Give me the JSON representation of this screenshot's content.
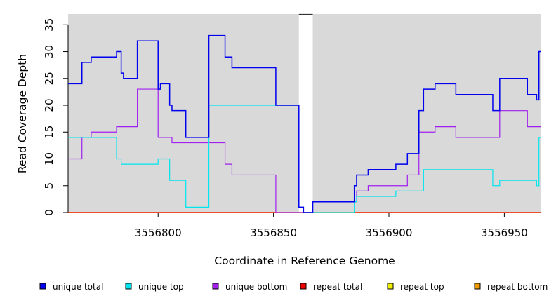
{
  "chart_data": {
    "type": "line",
    "title": "",
    "xlabel": "Coordinate in Reference Genome",
    "ylabel": "Read Coverage Depth",
    "xlim": [
      3556761,
      3556966
    ],
    "ylim": [
      0,
      37
    ],
    "x_ticks": [
      3556800,
      3556850,
      3556900,
      3556950
    ],
    "x_tick_labels": [
      "3556800",
      "3556850",
      "3556900",
      "3556950"
    ],
    "y_ticks": [
      0,
      5,
      10,
      15,
      20,
      25,
      30,
      35
    ],
    "y_tick_labels": [
      "0",
      "5",
      "10",
      "15",
      "20",
      "25",
      "30",
      "35"
    ],
    "grid": false,
    "step": true,
    "legend_position": "bottom",
    "gap_region": [
      3556861,
      3556867
    ],
    "colors": {
      "unique total": "#0000ee",
      "unique top": "#00e5ee",
      "unique bottom": "#a020f0",
      "repeat total": "#ee0000",
      "repeat top": "#eeee00",
      "repeat bottom": "#ee9a00",
      "plot_background": "#d9d9d9"
    },
    "series": [
      {
        "name": "unique total",
        "points": [
          [
            3556761,
            24
          ],
          [
            3556767,
            28
          ],
          [
            3556771,
            29
          ],
          [
            3556782,
            30
          ],
          [
            3556784,
            26
          ],
          [
            3556785,
            25
          ],
          [
            3556791,
            32
          ],
          [
            3556800,
            23
          ],
          [
            3556801,
            24
          ],
          [
            3556805,
            20
          ],
          [
            3556806,
            19
          ],
          [
            3556812,
            14
          ],
          [
            3556822,
            33
          ],
          [
            3556829,
            29
          ],
          [
            3556832,
            27
          ],
          [
            3556851,
            20
          ],
          [
            3556861,
            1
          ],
          [
            3556863,
            0
          ],
          [
            3556867,
            2
          ],
          [
            3556885,
            5
          ],
          [
            3556886,
            7
          ],
          [
            3556891,
            8
          ],
          [
            3556903,
            9
          ],
          [
            3556908,
            11
          ],
          [
            3556913,
            19
          ],
          [
            3556915,
            23
          ],
          [
            3556920,
            24
          ],
          [
            3556929,
            22
          ],
          [
            3556945,
            19
          ],
          [
            3556948,
            25
          ],
          [
            3556960,
            22
          ],
          [
            3556964,
            21
          ],
          [
            3556965,
            30
          ],
          [
            3556966,
            30
          ]
        ]
      },
      {
        "name": "unique top",
        "points": [
          [
            3556761,
            14
          ],
          [
            3556782,
            10
          ],
          [
            3556784,
            9
          ],
          [
            3556800,
            10
          ],
          [
            3556805,
            6
          ],
          [
            3556812,
            1
          ],
          [
            3556822,
            20
          ],
          [
            3556861,
            1
          ],
          [
            3556863,
            0
          ],
          [
            3556867,
            0
          ],
          [
            3556885,
            2
          ],
          [
            3556886,
            3
          ],
          [
            3556903,
            4
          ],
          [
            3556915,
            8
          ],
          [
            3556945,
            5
          ],
          [
            3556948,
            6
          ],
          [
            3556964,
            5
          ],
          [
            3556965,
            14
          ],
          [
            3556966,
            14
          ]
        ]
      },
      {
        "name": "unique bottom",
        "points": [
          [
            3556761,
            10
          ],
          [
            3556767,
            14
          ],
          [
            3556771,
            15
          ],
          [
            3556782,
            16
          ],
          [
            3556791,
            23
          ],
          [
            3556800,
            14
          ],
          [
            3556806,
            13
          ],
          [
            3556829,
            9
          ],
          [
            3556832,
            7
          ],
          [
            3556851,
            0
          ],
          [
            3556863,
            0
          ],
          [
            3556867,
            2
          ],
          [
            3556885,
            2
          ],
          [
            3556886,
            4
          ],
          [
            3556891,
            5
          ],
          [
            3556908,
            7
          ],
          [
            3556913,
            15
          ],
          [
            3556920,
            16
          ],
          [
            3556929,
            14
          ],
          [
            3556948,
            19
          ],
          [
            3556960,
            16
          ],
          [
            3556966,
            16
          ]
        ]
      },
      {
        "name": "repeat total",
        "points": [
          [
            3556761,
            0
          ],
          [
            3556966,
            0
          ]
        ]
      },
      {
        "name": "repeat top",
        "points": [
          [
            3556761,
            0
          ],
          [
            3556966,
            0
          ]
        ]
      },
      {
        "name": "repeat bottom",
        "points": [
          [
            3556761,
            0
          ],
          [
            3556966,
            0
          ]
        ]
      }
    ]
  }
}
